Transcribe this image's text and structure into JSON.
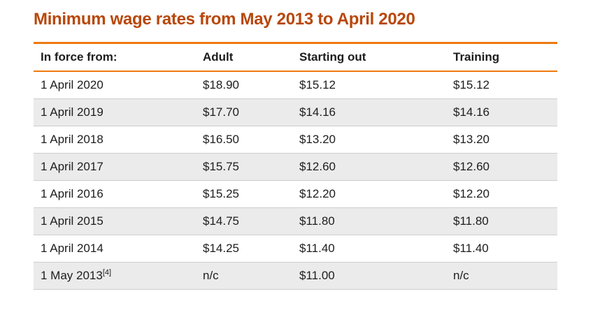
{
  "page": {
    "title": "Minimum wage rates from May 2013 to April 2020"
  },
  "chart_data": {
    "type": "table",
    "title": "Minimum wage rates from May 2013 to April 2020",
    "columns": [
      "In force from:",
      "Adult",
      "Starting out",
      "Training"
    ],
    "rows": [
      [
        "1 April 2020",
        "$18.90",
        "$15.12",
        "$15.12"
      ],
      [
        "1 April 2019",
        "$17.70",
        "$14.16",
        "$14.16"
      ],
      [
        "1 April 2018",
        "$16.50",
        "$13.20",
        "$13.20"
      ],
      [
        "1 April 2017",
        "$15.75",
        "$12.60",
        "$12.60"
      ],
      [
        "1 April 2016",
        "$15.25",
        "$12.20",
        "$12.20"
      ],
      [
        "1 April 2015",
        "$14.75",
        "$11.80",
        "$11.80"
      ],
      [
        "1 April 2014",
        "$14.25",
        "$11.40",
        "$11.40"
      ],
      [
        "1 May 2013",
        "n/c",
        "$11.00",
        "n/c"
      ]
    ],
    "footnote_ref": {
      "row_index": 7,
      "column_index": 0,
      "marker": "[4]"
    },
    "layout_hints": {
      "header_style": "bold, white background, orange top and bottom rules",
      "row_striping": "even rows shaded"
    }
  },
  "colors": {
    "title_text": "#b8470b",
    "accent_line": "#f0790f",
    "row_alt_background": "#ebebeb",
    "row_divider": "#cdcdcd",
    "body_text": "#1d1d1d",
    "page_background": "#ffffff"
  }
}
